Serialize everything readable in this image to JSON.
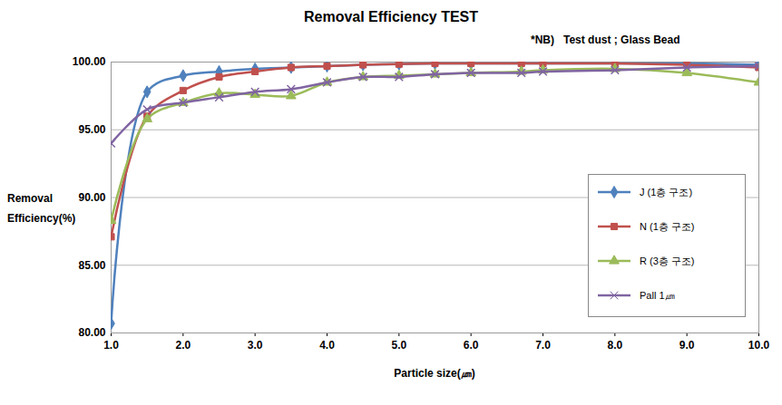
{
  "chart_data": {
    "type": "line",
    "title": "Removal Efficiency TEST",
    "annotation": "*NB)   Test dust ; Glass Bead",
    "x_label": "Particle size(㎛)",
    "y_label": "Removal Efficiency(%)",
    "x": [
      1.0,
      1.5,
      2.0,
      2.5,
      3.0,
      3.5,
      4.0,
      4.5,
      5.0,
      5.5,
      6.0,
      6.7,
      7.0,
      8.0,
      9.0,
      10.0
    ],
    "series": [
      {
        "name": "J (1층 구조)",
        "color": "#4f81bd",
        "marker": "diamond",
        "values": [
          80.7,
          97.8,
          99.0,
          99.3,
          99.5,
          99.6,
          99.7,
          99.8,
          99.85,
          99.9,
          99.9,
          99.9,
          99.9,
          99.9,
          99.9,
          99.8
        ]
      },
      {
        "name": "N (1층 구조)",
        "color": "#c0504d",
        "marker": "square",
        "values": [
          87.1,
          96.0,
          97.9,
          98.9,
          99.3,
          99.6,
          99.7,
          99.8,
          99.85,
          99.9,
          99.9,
          99.9,
          99.9,
          99.9,
          99.8,
          99.6
        ]
      },
      {
        "name": "R (3층 구조)",
        "color": "#9bbb59",
        "marker": "triangle",
        "values": [
          88.3,
          95.8,
          97.0,
          97.7,
          97.6,
          97.5,
          98.5,
          98.9,
          99.0,
          99.1,
          99.2,
          99.3,
          99.4,
          99.5,
          99.2,
          98.5
        ]
      },
      {
        "name": "Pall 1㎛",
        "color": "#8064a2",
        "marker": "times",
        "values": [
          94.0,
          96.5,
          97.0,
          97.4,
          97.8,
          98.0,
          98.5,
          98.9,
          98.9,
          99.1,
          99.2,
          99.2,
          99.3,
          99.4,
          99.6,
          99.7
        ]
      }
    ],
    "xlim": [
      1.0,
      10.0
    ],
    "xticks": [
      {
        "value": 1,
        "label": "1.0"
      },
      {
        "value": 2,
        "label": "2.0"
      },
      {
        "value": 3,
        "label": "3.0"
      },
      {
        "value": 4,
        "label": "4.0"
      },
      {
        "value": 5,
        "label": "5.0"
      },
      {
        "value": 6,
        "label": "6.0"
      },
      {
        "value": 7,
        "label": "7.0"
      },
      {
        "value": 8,
        "label": "8.0"
      },
      {
        "value": 9,
        "label": "9.0"
      },
      {
        "value": 10,
        "label": "10.0"
      }
    ],
    "ylim": [
      80,
      100
    ],
    "yticks": [
      {
        "value": 80,
        "label": "80.00"
      },
      {
        "value": 85,
        "label": "85.00"
      },
      {
        "value": 90,
        "label": "90.00"
      },
      {
        "value": 95,
        "label": "95.00"
      },
      {
        "value": 100,
        "label": "100.00"
      }
    ],
    "grid": true,
    "legend": "right"
  }
}
